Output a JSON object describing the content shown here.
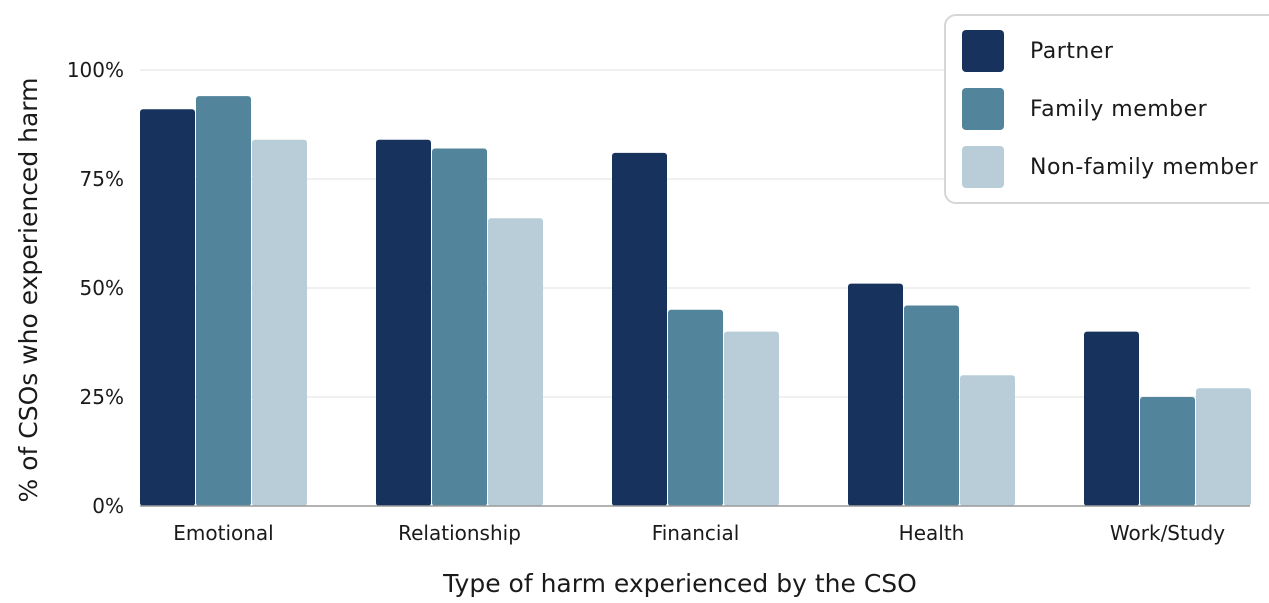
{
  "chart_data": {
    "type": "bar",
    "title": "",
    "xlabel": "Type of harm experienced by the CSO",
    "ylabel": "% of CSOs who experienced harm",
    "ylim": [
      0,
      100
    ],
    "yticks": [
      "0%",
      "25%",
      "50%",
      "75%",
      "100%"
    ],
    "ytick_values": [
      0,
      25,
      50,
      75,
      100
    ],
    "grid": true,
    "legend_position": "top-right",
    "categories": [
      "Emotional",
      "Relationship",
      "Financial",
      "Health",
      "Work/Study"
    ],
    "series": [
      {
        "name": "Partner",
        "color": "#17325c",
        "values": [
          91,
          84,
          81,
          51,
          40
        ]
      },
      {
        "name": "Family member",
        "color": "#52849c",
        "values": [
          94,
          82,
          45,
          46,
          25
        ]
      },
      {
        "name": "Non-family member",
        "color": "#b8cdd8",
        "values": [
          84,
          66,
          40,
          30,
          27
        ]
      }
    ]
  }
}
